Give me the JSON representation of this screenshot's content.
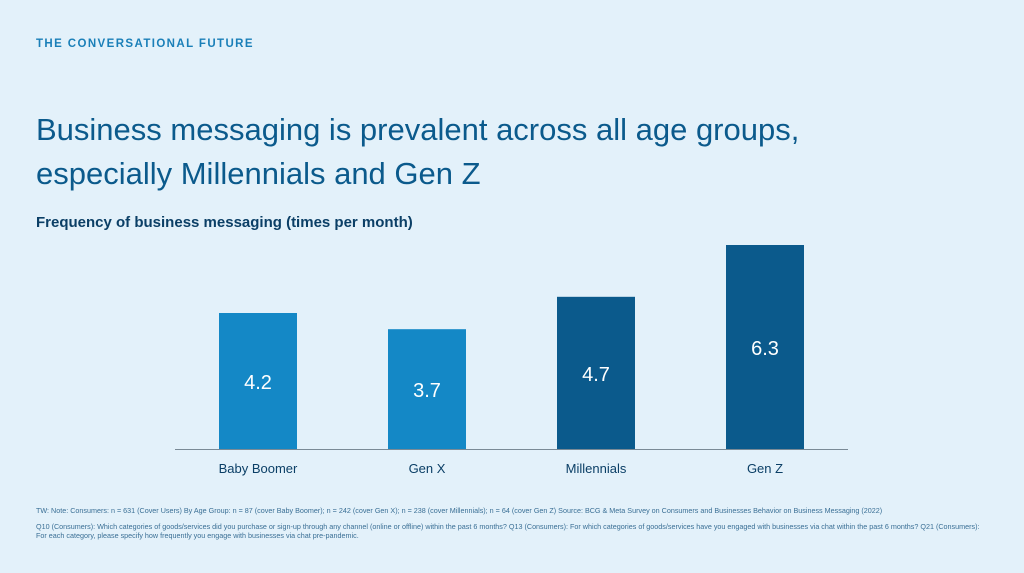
{
  "slide": {
    "eyebrow": "THE CONVERSATIONAL FUTURE",
    "headline": "Business messaging is prevalent across all age groups, especially Millennials and Gen Z",
    "footnotes": [
      "TW: Note: Consumers: n = 631 (Cover Users) By Age Group: n = 87 (cover Baby Boomer); n = 242 (cover Gen X); n = 238 (cover Millennials); n = 64 (cover Gen Z) Source: BCG & Meta Survey on Consumers and Businesses Behavior on Business Messaging (2022)",
      "Q10 (Consumers): Which categories of goods/services did you purchase or sign-up through any channel (online or offline) within the past 6 months? Q13 (Consumers): For which categories of goods/services have you engaged with businesses via chat within the past 6 months? Q21 (Consumers): For each category, please specify how frequently you engage with businesses via chat pre-pandemic."
    ]
  },
  "chart_data": {
    "type": "bar",
    "title": "Frequency of business messaging (times per month)",
    "categories": [
      "Baby Boomer",
      "Gen X",
      "Millennials",
      "Gen Z"
    ],
    "values": [
      4.2,
      3.7,
      4.7,
      6.3
    ],
    "value_labels": [
      "4.2",
      "3.7",
      "4.7",
      "6.3"
    ],
    "bar_colors": [
      "#1488c6",
      "#1488c6",
      "#0b5a8c",
      "#0b5a8c"
    ],
    "ylim": [
      0,
      6.3
    ],
    "grid": false,
    "legend": "none"
  }
}
